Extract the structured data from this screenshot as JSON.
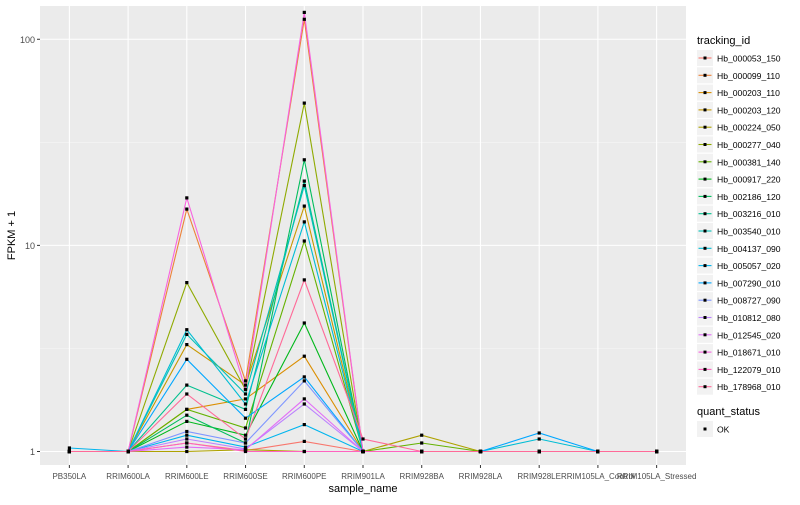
{
  "chart_data": {
    "type": "line",
    "y_scale": "log10",
    "xlabel": "sample_name",
    "ylabel": "FPKM + 1",
    "ylim": [
      0.86,
      145
    ],
    "y_ticks": [
      1,
      10,
      100
    ],
    "y_tick_labels": [
      "1",
      "10",
      "100"
    ],
    "categories": [
      "PB350LA",
      "RRIM600LA",
      "RRIM600LE",
      "RRIM600SE",
      "RRIM600PE",
      "RRIM901LA",
      "RRIM928BA",
      "RRIM928LA",
      "RRIM928LE",
      "RRIM105LA_Control",
      "RRIM105LA_Stressed"
    ],
    "legend_color": {
      "title": "tracking_id",
      "placement": "right"
    },
    "legend_shape": {
      "title": "quant_status",
      "entries": [
        "OK"
      ]
    },
    "series": [
      {
        "name": "Hb_000053_150",
        "color": "#F8766D",
        "values": [
          1.0,
          1.0,
          1.1,
          1.01,
          1.12,
          1.0,
          1.0,
          1.0,
          1.0,
          1.0,
          1.0
        ]
      },
      {
        "name": "Hb_000099_110",
        "color": "#EC8239",
        "values": [
          1.0,
          1.0,
          15.0,
          2.2,
          125.0,
          1.0,
          1.0,
          1.0,
          1.0,
          1.0,
          1.0
        ]
      },
      {
        "name": "Hb_000203_110",
        "color": "#DB8E00",
        "values": [
          1.0,
          1.0,
          1.6,
          1.8,
          2.9,
          1.0,
          1.0,
          1.0,
          1.0,
          1.0,
          1.0
        ]
      },
      {
        "name": "Hb_000203_120",
        "color": "#C79800",
        "values": [
          1.0,
          1.0,
          3.3,
          2.1,
          15.5,
          1.0,
          1.0,
          1.0,
          1.0,
          1.0,
          1.0
        ]
      },
      {
        "name": "Hb_000224_050",
        "color": "#AEA200",
        "values": [
          1.0,
          1.0,
          1.0,
          1.02,
          1.0,
          1.0,
          1.2,
          1.0,
          1.0,
          1.0,
          1.0
        ]
      },
      {
        "name": "Hb_000277_040",
        "color": "#8FAA00",
        "values": [
          1.0,
          1.0,
          6.6,
          2.0,
          49.0,
          1.0,
          1.0,
          1.0,
          1.0,
          1.0,
          1.0
        ]
      },
      {
        "name": "Hb_000381_140",
        "color": "#64B200",
        "values": [
          1.0,
          1.0,
          1.6,
          1.3,
          10.5,
          1.0,
          1.1,
          1.0,
          1.0,
          1.0,
          1.0
        ]
      },
      {
        "name": "Hb_000917_220",
        "color": "#00B81B",
        "values": [
          1.0,
          1.0,
          1.4,
          1.2,
          4.2,
          1.0,
          1.0,
          1.0,
          1.0,
          1.0,
          1.0
        ]
      },
      {
        "name": "Hb_002186_120",
        "color": "#00BD5C",
        "values": [
          1.0,
          1.0,
          1.5,
          1.1,
          26.0,
          1.0,
          1.0,
          1.0,
          1.0,
          1.0,
          1.0
        ]
      },
      {
        "name": "Hb_003216_010",
        "color": "#00C08E",
        "values": [
          1.0,
          1.0,
          2.1,
          1.6,
          20.5,
          1.0,
          1.0,
          1.0,
          1.0,
          1.0,
          1.0
        ]
      },
      {
        "name": "Hb_003540_010",
        "color": "#00C1B7",
        "values": [
          1.0,
          1.0,
          3.7,
          1.9,
          19.5,
          1.0,
          1.0,
          1.0,
          1.0,
          1.0,
          1.0
        ]
      },
      {
        "name": "Hb_004137_090",
        "color": "#00BDD4",
        "values": [
          1.0,
          1.0,
          3.9,
          1.7,
          13.0,
          1.0,
          1.0,
          1.0,
          1.15,
          1.0,
          1.0
        ]
      },
      {
        "name": "Hb_005057_020",
        "color": "#00B5EE",
        "values": [
          1.04,
          1.0,
          1.2,
          1.05,
          1.35,
          1.0,
          1.0,
          1.0,
          1.0,
          1.0,
          1.0
        ]
      },
      {
        "name": "Hb_007290_010",
        "color": "#00A7FF",
        "values": [
          1.0,
          1.0,
          2.8,
          1.45,
          2.3,
          1.0,
          1.0,
          1.0,
          1.23,
          1.0,
          1.0
        ]
      },
      {
        "name": "Hb_008727_090",
        "color": "#7F96FF",
        "values": [
          1.0,
          1.0,
          1.25,
          1.1,
          2.2,
          1.0,
          1.0,
          1.0,
          1.0,
          1.0,
          1.0
        ]
      },
      {
        "name": "Hb_010812_080",
        "color": "#BC81FF",
        "values": [
          1.0,
          1.0,
          1.15,
          1.03,
          1.7,
          1.0,
          1.0,
          1.0,
          1.0,
          1.0,
          1.0
        ]
      },
      {
        "name": "Hb_012545_020",
        "color": "#E26EF7",
        "values": [
          1.0,
          1.0,
          1.05,
          1.02,
          1.8,
          1.0,
          1.0,
          1.0,
          1.0,
          1.0,
          1.0
        ]
      },
      {
        "name": "Hb_018671_010",
        "color": "#F863DF",
        "values": [
          1.0,
          1.0,
          17.0,
          2.0,
          135.0,
          1.0,
          1.0,
          1.0,
          1.0,
          1.0,
          1.0
        ]
      },
      {
        "name": "Hb_122079_010",
        "color": "#FF62BF",
        "values": [
          1.0,
          1.0,
          1.1,
          1.0,
          1.0,
          1.0,
          1.0,
          1.0,
          1.0,
          1.0,
          1.0
        ]
      },
      {
        "name": "Hb_178968_010",
        "color": "#FF6A98",
        "values": [
          1.0,
          1.0,
          1.9,
          1.15,
          6.8,
          1.15,
          1.0,
          1.0,
          1.0,
          1.0,
          1.0
        ]
      }
    ]
  }
}
